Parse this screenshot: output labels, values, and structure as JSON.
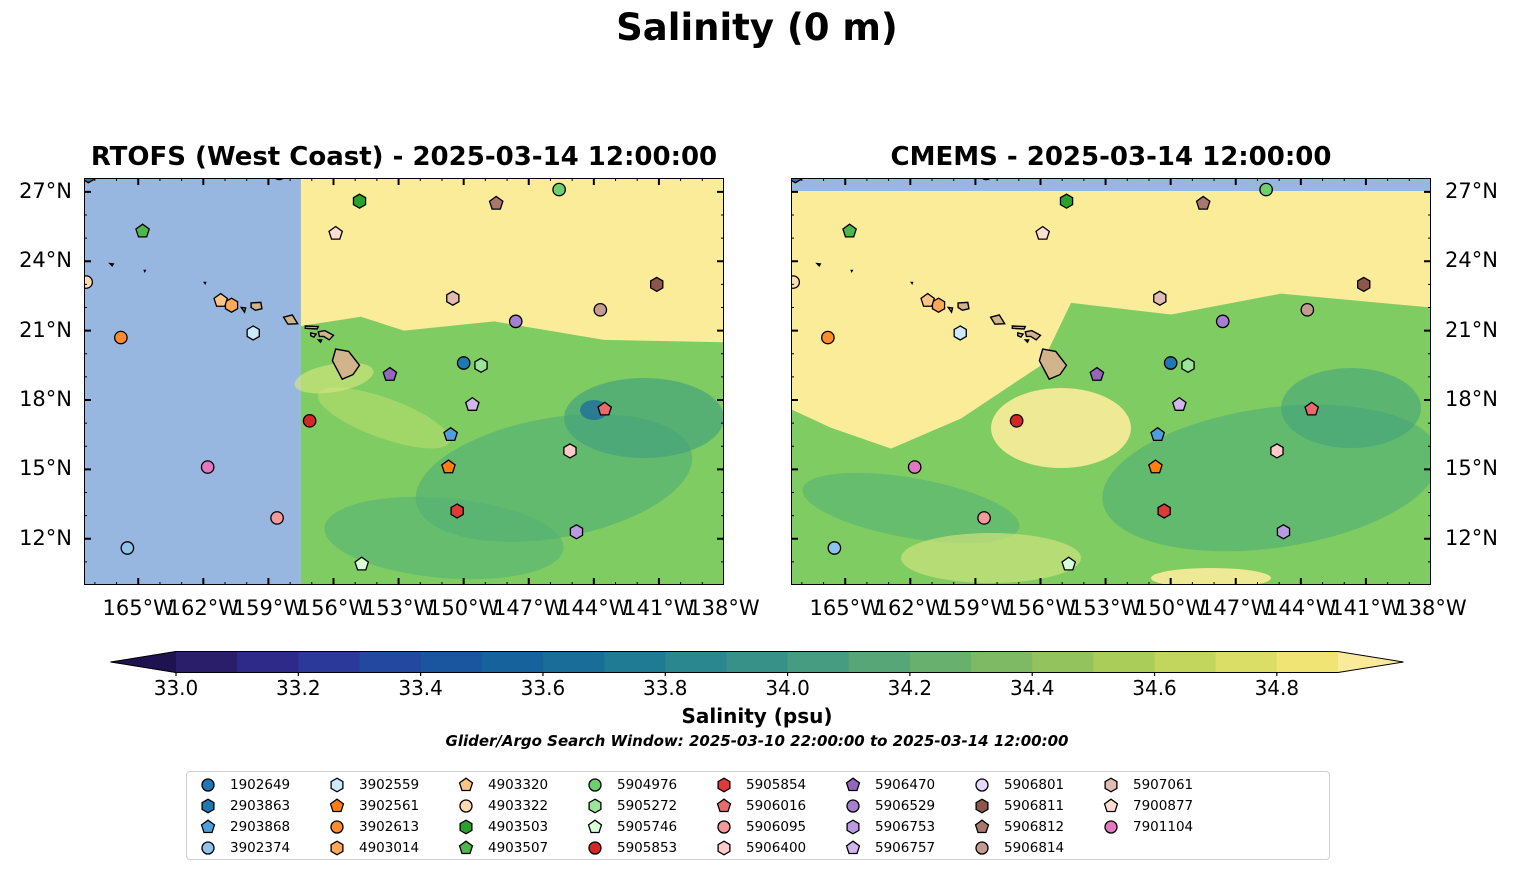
{
  "title": "Salinity (0 m)",
  "panels": [
    {
      "title": "RTOFS (West Coast) - 2025-03-14 12:00:00",
      "y_ticks_side": "left",
      "model_coverage": "east of 157.5°W"
    },
    {
      "title": "CMEMS - 2025-03-14 12:00:00",
      "y_ticks_side": "right",
      "model_coverage": "full domain below 27.1°N"
    }
  ],
  "map_extent": {
    "lon": [
      -167.5,
      -138
    ],
    "lat": [
      10,
      27.6
    ]
  },
  "x_ticks": [
    "165°W",
    "162°W",
    "159°W",
    "156°W",
    "153°W",
    "150°W",
    "147°W",
    "144°W",
    "141°W",
    "138°W"
  ],
  "x_tick_values": [
    -165,
    -162,
    -159,
    -156,
    -153,
    -150,
    -147,
    -144,
    -141,
    -138
  ],
  "y_ticks": [
    "27°N",
    "24°N",
    "21°N",
    "18°N",
    "15°N",
    "12°N"
  ],
  "y_tick_values": [
    27,
    24,
    21,
    18,
    15,
    12
  ],
  "colorbar": {
    "label": "Salinity (psu)",
    "ticks": [
      "33.0",
      "33.2",
      "33.4",
      "33.6",
      "33.8",
      "34.0",
      "34.2",
      "34.4",
      "34.6",
      "34.8"
    ],
    "min": 33.0,
    "max": 34.9,
    "step": 0.1,
    "extend": "both",
    "colors": [
      "#2a1e6b",
      "#2d2a8a",
      "#2b3a9a",
      "#23489f",
      "#1a559f",
      "#16629d",
      "#186e99",
      "#1f7a94",
      "#2a868f",
      "#379188",
      "#459c80",
      "#56a677",
      "#68b06d",
      "#7dba63",
      "#93c35c",
      "#aacc59",
      "#c2d55c",
      "#dade67",
      "#f0e474"
    ],
    "under_color": "#1f1250",
    "over_color": "#fbe99c"
  },
  "colors": {
    "land": "#d2b48c",
    "ocean_nodata": "#97b6e0",
    "high_salinity": "#fbec9a",
    "mid_salinity": "#7fcc62",
    "low_salinity": "#55b274"
  },
  "search_window": "Glider/Argo Search Window: 2025-03-10 22:00:00 to 2025-03-14 12:00:00",
  "floats": [
    {
      "id": "1902649",
      "marker": "circle",
      "color": "#1f77b4",
      "lon": -150.0,
      "lat": 19.6
    },
    {
      "id": "2903863",
      "marker": "hexagon",
      "color": "#1f77b4",
      "lon": -167.3,
      "lat": 27.7
    },
    {
      "id": "2903868",
      "marker": "pentagon",
      "color": "#4f9fdc",
      "lon": -150.6,
      "lat": 16.5
    },
    {
      "id": "3902374",
      "marker": "circle",
      "color": "#8fc3ec",
      "lon": -165.5,
      "lat": 11.6
    },
    {
      "id": "3902559",
      "marker": "hexagon",
      "color": "#cde9ff",
      "lon": -159.7,
      "lat": 20.9
    },
    {
      "id": "3902561",
      "marker": "pentagon",
      "color": "#ff7f0e",
      "lon": -150.7,
      "lat": 15.1
    },
    {
      "id": "3902613",
      "marker": "circle",
      "color": "#ff8c2e",
      "lon": -165.8,
      "lat": 20.7
    },
    {
      "id": "4903014",
      "marker": "hexagon",
      "color": "#ffa75a",
      "lon": -160.7,
      "lat": 22.1
    },
    {
      "id": "4903320",
      "marker": "pentagon",
      "color": "#ffc487",
      "lon": -161.2,
      "lat": 22.3
    },
    {
      "id": "4903322",
      "marker": "circle",
      "color": "#ffdcb4",
      "lon": -167.4,
      "lat": 23.1
    },
    {
      "id": "4903503",
      "marker": "hexagon",
      "color": "#2ca02c",
      "lon": -154.8,
      "lat": 26.6
    },
    {
      "id": "4903507",
      "marker": "pentagon",
      "color": "#4cb84c",
      "lon": -164.8,
      "lat": 25.3
    },
    {
      "id": "5904976",
      "marker": "circle",
      "color": "#6fcf6f",
      "lon": -145.6,
      "lat": 27.1
    },
    {
      "id": "5905272",
      "marker": "hexagon",
      "color": "#9ae59a",
      "lon": -149.2,
      "lat": 19.5
    },
    {
      "id": "5905746",
      "marker": "pentagon",
      "color": "#d8ffd8",
      "lon": -154.7,
      "lat": 10.9
    },
    {
      "id": "5905853",
      "marker": "circle",
      "color": "#d62728",
      "lon": -157.1,
      "lat": 17.1
    },
    {
      "id": "5905854",
      "marker": "hexagon",
      "color": "#de3a3a",
      "lon": -150.3,
      "lat": 13.2
    },
    {
      "id": "5906016",
      "marker": "pentagon",
      "color": "#e86a6a",
      "lon": -143.5,
      "lat": 17.6
    },
    {
      "id": "5906095",
      "marker": "circle",
      "color": "#f59a9a",
      "lon": -158.6,
      "lat": 12.9
    },
    {
      "id": "5906400",
      "marker": "hexagon",
      "color": "#ffcaca",
      "lon": -145.1,
      "lat": 15.8
    },
    {
      "id": "5906470",
      "marker": "pentagon",
      "color": "#9467bd",
      "lon": -153.4,
      "lat": 19.1
    },
    {
      "id": "5906529",
      "marker": "circle",
      "color": "#a57fd0",
      "lon": -147.6,
      "lat": 21.4
    },
    {
      "id": "5906753",
      "marker": "hexagon",
      "color": "#b99be0",
      "lon": -144.8,
      "lat": 12.3
    },
    {
      "id": "5906757",
      "marker": "pentagon",
      "color": "#cfb7ee",
      "lon": -149.6,
      "lat": 17.8
    },
    {
      "id": "5906801",
      "marker": "circle",
      "color": "#e6d8fa",
      "lon": -158.5,
      "lat": 27.8
    },
    {
      "id": "5906811",
      "marker": "hexagon",
      "color": "#8c564b",
      "lon": -141.1,
      "lat": 23.0
    },
    {
      "id": "5906812",
      "marker": "pentagon",
      "color": "#a9786c",
      "lon": -148.5,
      "lat": 26.5
    },
    {
      "id": "5906814",
      "marker": "circle",
      "color": "#c49b8f",
      "lon": -143.7,
      "lat": 21.9
    },
    {
      "id": "5907061",
      "marker": "hexagon",
      "color": "#e0bcb1",
      "lon": -150.5,
      "lat": 22.4
    },
    {
      "id": "7900877",
      "marker": "pentagon",
      "color": "#ffddd3",
      "lon": -155.9,
      "lat": 25.2
    },
    {
      "id": "7901104",
      "marker": "circle",
      "color": "#e377c2",
      "lon": -161.8,
      "lat": 15.1
    }
  ]
}
